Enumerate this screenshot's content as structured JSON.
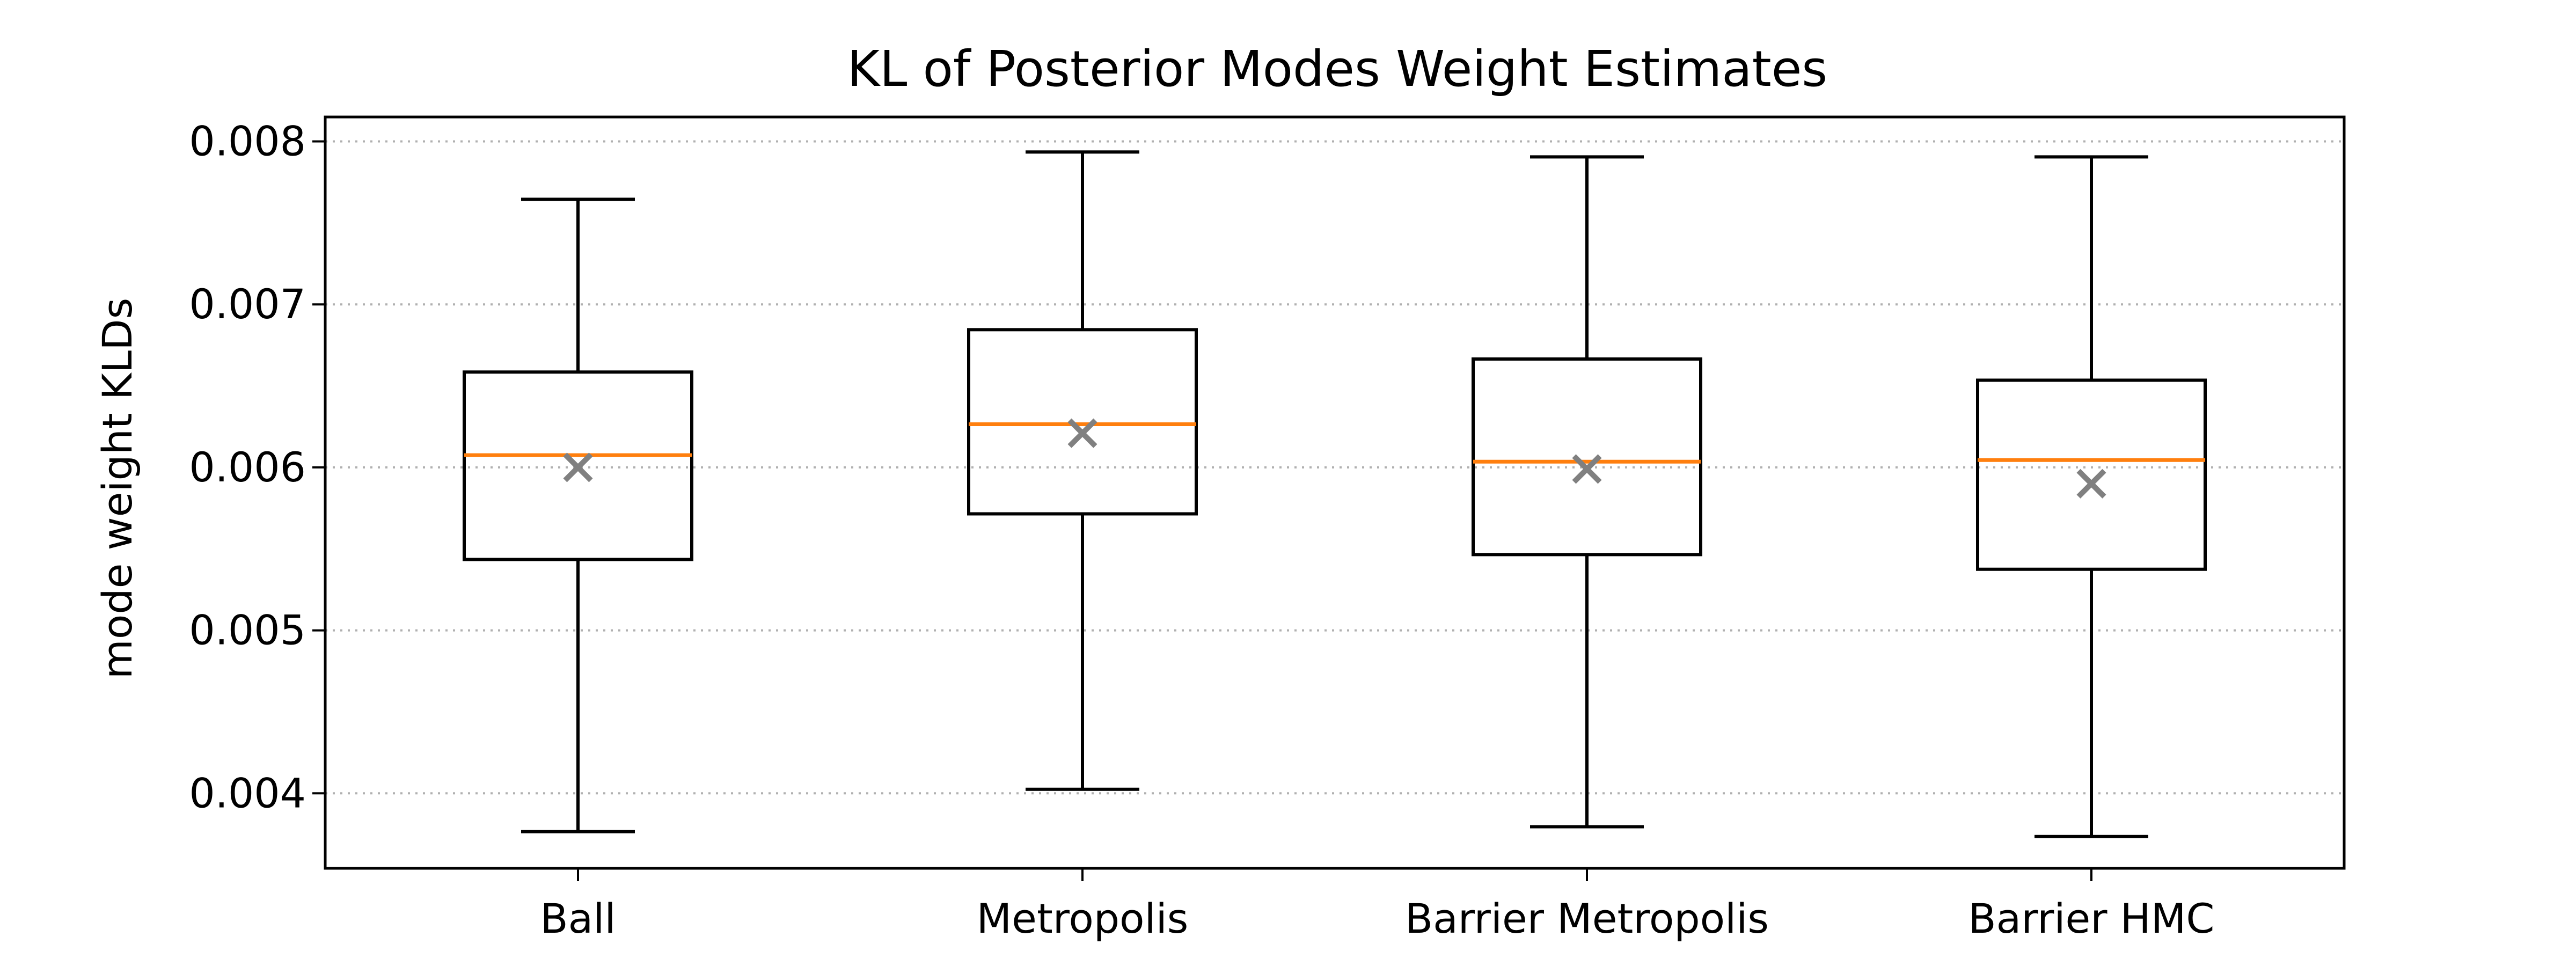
{
  "chart_data": {
    "type": "box",
    "title": "KL of Posterior Modes Weight Estimates",
    "xlabel": "",
    "ylabel": "mode weight KLDs",
    "ylim": [
      0.00354,
      0.00815
    ],
    "yticks": [
      0.004,
      0.005,
      0.006,
      0.007,
      0.008
    ],
    "ytick_labels": [
      "0.004",
      "0.005",
      "0.006",
      "0.007",
      "0.008"
    ],
    "grid": "y-dotted",
    "categories": [
      "Ball",
      "Metropolis",
      "Barrier Metropolis",
      "Barrier HMC"
    ],
    "boxes": [
      {
        "whisker_low": 0.003765,
        "q1": 0.005435,
        "median": 0.006075,
        "q3": 0.006585,
        "whisker_high": 0.007645,
        "mean": 0.006
      },
      {
        "whisker_low": 0.004025,
        "q1": 0.005715,
        "median": 0.006265,
        "q3": 0.006845,
        "whisker_high": 0.007935,
        "mean": 0.00621
      },
      {
        "whisker_low": 0.003795,
        "q1": 0.005465,
        "median": 0.006035,
        "q3": 0.006665,
        "whisker_high": 0.007905,
        "mean": 0.00599
      },
      {
        "whisker_low": 0.003735,
        "q1": 0.005375,
        "median": 0.006045,
        "q3": 0.006535,
        "whisker_high": 0.007905,
        "mean": 0.0059
      }
    ],
    "colors": {
      "box": "#000000",
      "median": "#ff7f0e",
      "mean_marker": "#808080",
      "grid": "#b0b0b0"
    }
  }
}
